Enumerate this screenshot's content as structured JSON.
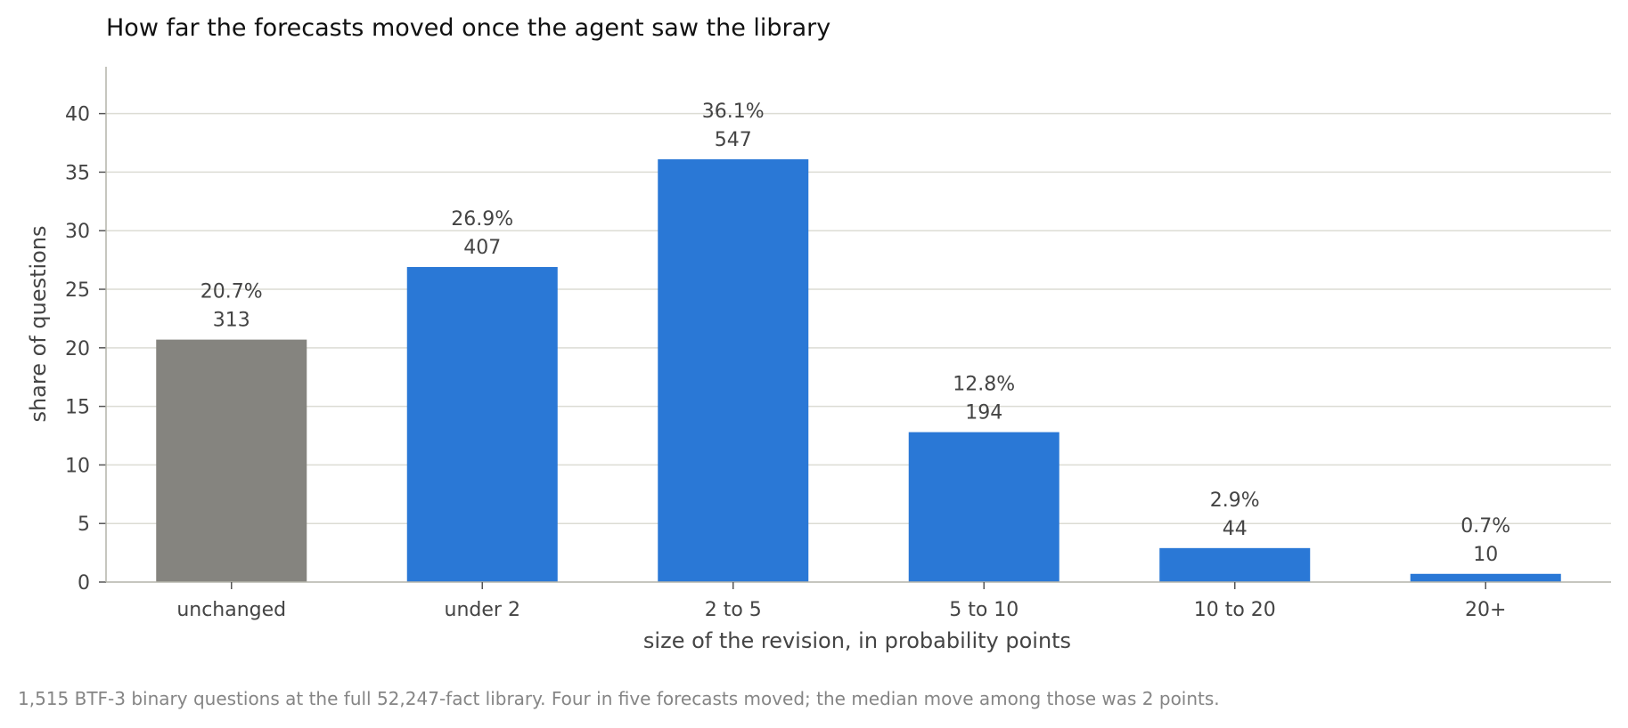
{
  "chart_data": {
    "type": "bar",
    "title": "How far the forecasts moved once the agent saw the library",
    "xlabel": "size of the revision, in probability points",
    "ylabel": "share of questions",
    "categories": [
      "unchanged",
      "under 2",
      "2 to 5",
      "5 to 10",
      "10 to 20",
      "20+"
    ],
    "values": [
      20.7,
      26.9,
      36.1,
      12.8,
      2.9,
      0.7
    ],
    "percent_labels": [
      "20.7%",
      "26.9%",
      "36.1%",
      "12.8%",
      "2.9%",
      "0.7%"
    ],
    "count_labels": [
      "313",
      "407",
      "547",
      "194",
      "44",
      "10"
    ],
    "bar_colors": [
      "#85847f",
      "#2a78d6",
      "#2a78d6",
      "#2a78d6",
      "#2a78d6",
      "#2a78d6"
    ],
    "ylim": [
      0,
      44
    ],
    "yticks": [
      "0",
      "5",
      "10",
      "15",
      "20",
      "25",
      "30",
      "35",
      "40"
    ],
    "grid": true,
    "footnote": "1,515 BTF-3 binary questions at the full 52,247-fact library. Four in five forecasts moved; the median move among those was 2 points."
  },
  "colors": {
    "grid": "#dcdcd4",
    "axis": "#b4b4aa"
  }
}
